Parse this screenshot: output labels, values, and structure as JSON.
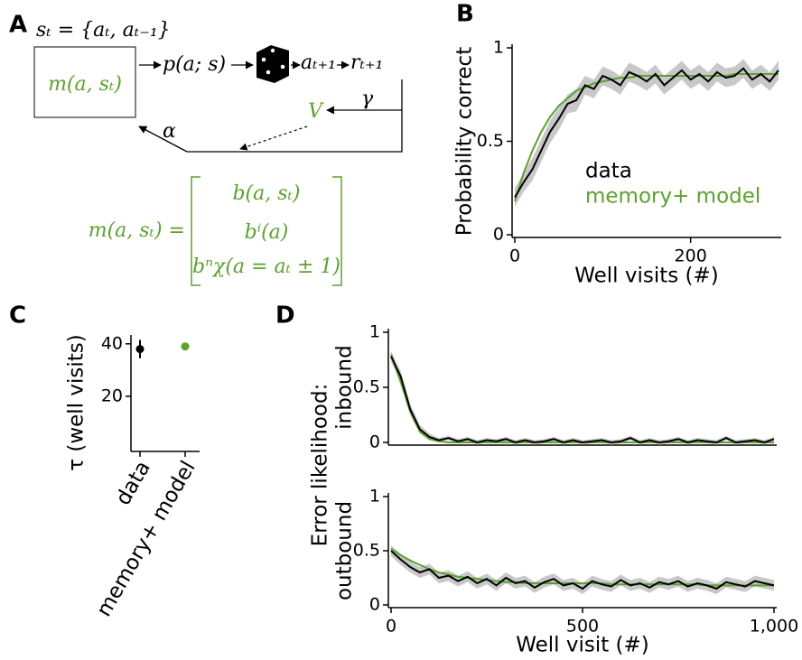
{
  "diagram": {
    "panel_label": "A",
    "state": "sₜ = {aₜ, aₜ₋₁}",
    "memory": "m(a, sₜ)",
    "policy": "p(a; s)",
    "action": "aₜ₊₁",
    "reward": "rₜ₊₁",
    "gamma": "γ",
    "value": "V",
    "alpha": "α",
    "equation_lhs": "m(a, sₜ) =",
    "matrix": [
      "b(a, sₜ)",
      "bⁱ(a)",
      "bⁿχ(a = aₜ ± 1)"
    ]
  },
  "chart_data": [
    {
      "type": "line",
      "panel_label": "B",
      "xlabel": "Well visits (#)",
      "ylabel": "Probability correct",
      "x": [
        0,
        10,
        20,
        30,
        40,
        50,
        60,
        70,
        80,
        90,
        100,
        110,
        120,
        130,
        140,
        150,
        160,
        170,
        180,
        190,
        200,
        210,
        220,
        230,
        240,
        250,
        260,
        270,
        280,
        290,
        300
      ],
      "xlim": [
        0,
        300
      ],
      "xticks": [
        0,
        200
      ],
      "ylim": [
        0,
        1
      ],
      "yticks": [
        0,
        0.5,
        1
      ],
      "legend": "right",
      "series": [
        {
          "name": "data",
          "color": "#000000",
          "values": [
            0.2,
            0.28,
            0.35,
            0.45,
            0.55,
            0.62,
            0.7,
            0.72,
            0.8,
            0.78,
            0.85,
            0.83,
            0.8,
            0.87,
            0.85,
            0.82,
            0.86,
            0.8,
            0.84,
            0.88,
            0.83,
            0.86,
            0.82,
            0.87,
            0.84,
            0.85,
            0.89,
            0.83,
            0.86,
            0.82,
            0.88
          ],
          "errors": [
            0.05,
            0.05,
            0.06,
            0.06,
            0.06,
            0.06,
            0.05,
            0.06,
            0.05,
            0.05,
            0.05,
            0.05,
            0.05,
            0.05,
            0.05,
            0.05,
            0.05,
            0.05,
            0.05,
            0.05,
            0.05,
            0.05,
            0.05,
            0.05,
            0.05,
            0.05,
            0.05,
            0.05,
            0.05,
            0.05,
            0.05
          ]
        },
        {
          "name": "memory+ model",
          "color": "#5da12f",
          "values": [
            0.18,
            0.33,
            0.45,
            0.55,
            0.63,
            0.69,
            0.73,
            0.77,
            0.79,
            0.81,
            0.82,
            0.83,
            0.84,
            0.84,
            0.85,
            0.85,
            0.85,
            0.85,
            0.85,
            0.85,
            0.85,
            0.85,
            0.85,
            0.85,
            0.85,
            0.86,
            0.86,
            0.86,
            0.86,
            0.86,
            0.86
          ]
        }
      ]
    },
    {
      "type": "point",
      "panel_label": "C",
      "ylabel": "τ (well visits)",
      "categories": [
        "data",
        "memory+ model"
      ],
      "values": [
        38,
        39
      ],
      "errors": [
        3.5,
        null
      ],
      "colors": [
        "#000000",
        "#5da12f"
      ],
      "ylim": [
        0,
        42
      ],
      "yticks": [
        20,
        40
      ]
    },
    {
      "type": "line",
      "panel_label": "D",
      "ylabel": "Error likelihood:",
      "ylabel2": "inbound",
      "x": [
        0,
        25,
        50,
        75,
        100,
        125,
        150,
        175,
        200,
        225,
        250,
        275,
        300,
        325,
        350,
        375,
        400,
        425,
        450,
        475,
        500,
        525,
        550,
        575,
        600,
        625,
        650,
        675,
        700,
        725,
        750,
        775,
        800,
        825,
        850,
        875,
        900,
        925,
        950,
        975,
        1000
      ],
      "xlim": [
        0,
        1000
      ],
      "xticks": [],
      "ylim": [
        0,
        1
      ],
      "yticks": [
        0,
        0.5,
        1
      ],
      "series": [
        {
          "name": "data",
          "color": "#000000",
          "values": [
            0.78,
            0.6,
            0.3,
            0.12,
            0.05,
            0.02,
            0.04,
            0.01,
            0.03,
            0.0,
            0.02,
            0.01,
            0.03,
            0.0,
            0.02,
            0.0,
            0.01,
            0.03,
            0.0,
            0.02,
            0.0,
            0.01,
            0.02,
            0.0,
            0.01,
            0.04,
            0.0,
            0.02,
            0.0,
            0.01,
            0.03,
            0.0,
            0.02,
            0.01,
            0.0,
            0.04,
            0.0,
            0.01,
            0.02,
            0.0,
            0.03
          ],
          "errors": [
            0.05,
            0.05,
            0.05,
            0.04,
            0.03,
            0.02,
            0.02,
            0.02,
            0.02,
            0.02,
            0.02,
            0.02,
            0.02,
            0.02,
            0.02,
            0.02,
            0.02,
            0.02,
            0.02,
            0.02,
            0.02,
            0.02,
            0.02,
            0.02,
            0.02,
            0.02,
            0.02,
            0.02,
            0.02,
            0.02,
            0.02,
            0.02,
            0.02,
            0.02,
            0.02,
            0.02,
            0.02,
            0.02,
            0.02,
            0.02,
            0.02
          ]
        },
        {
          "name": "memory+ model",
          "color": "#5da12f",
          "values": [
            0.8,
            0.55,
            0.28,
            0.1,
            0.03,
            0.01,
            0,
            0,
            0,
            0,
            0,
            0,
            0,
            0,
            0,
            0,
            0,
            0,
            0,
            0,
            0,
            0,
            0,
            0,
            0,
            0,
            0,
            0,
            0,
            0,
            0,
            0,
            0,
            0,
            0,
            0,
            0,
            0,
            0,
            0,
            0
          ]
        }
      ]
    },
    {
      "type": "line",
      "xlabel": "Well visit (#)",
      "ylabel2": "outbound",
      "x": [
        0,
        25,
        50,
        75,
        100,
        125,
        150,
        175,
        200,
        225,
        250,
        275,
        300,
        325,
        350,
        375,
        400,
        425,
        450,
        475,
        500,
        525,
        550,
        575,
        600,
        625,
        650,
        675,
        700,
        725,
        750,
        775,
        800,
        825,
        850,
        875,
        900,
        925,
        950,
        975,
        1000
      ],
      "xlim": [
        0,
        1000
      ],
      "xticks": [
        0,
        500,
        {
          "value": 1000,
          "label": "1,000"
        }
      ],
      "ylim": [
        0,
        1
      ],
      "yticks": [
        0,
        0.5,
        1
      ],
      "series": [
        {
          "name": "data",
          "color": "#000000",
          "values": [
            0.5,
            0.42,
            0.35,
            0.3,
            0.33,
            0.25,
            0.27,
            0.22,
            0.26,
            0.2,
            0.24,
            0.18,
            0.25,
            0.2,
            0.22,
            0.16,
            0.21,
            0.24,
            0.18,
            0.2,
            0.15,
            0.22,
            0.19,
            0.17,
            0.23,
            0.18,
            0.2,
            0.16,
            0.21,
            0.19,
            0.22,
            0.17,
            0.2,
            0.18,
            0.15,
            0.21,
            0.19,
            0.17,
            0.22,
            0.2,
            0.18
          ],
          "errors": [
            0.05,
            0.05,
            0.05,
            0.05,
            0.05,
            0.05,
            0.05,
            0.05,
            0.05,
            0.05,
            0.05,
            0.05,
            0.05,
            0.05,
            0.05,
            0.05,
            0.05,
            0.05,
            0.05,
            0.05,
            0.05,
            0.05,
            0.05,
            0.05,
            0.05,
            0.05,
            0.05,
            0.05,
            0.05,
            0.05,
            0.05,
            0.05,
            0.05,
            0.05,
            0.05,
            0.05,
            0.05,
            0.05,
            0.05,
            0.05,
            0.05
          ]
        },
        {
          "name": "memory+ model",
          "color": "#5da12f",
          "values": [
            0.52,
            0.46,
            0.41,
            0.37,
            0.33,
            0.3,
            0.28,
            0.26,
            0.25,
            0.24,
            0.23,
            0.22,
            0.21,
            0.21,
            0.2,
            0.2,
            0.2,
            0.2,
            0.2,
            0.2,
            0.2,
            0.2,
            0.2,
            0.19,
            0.19,
            0.19,
            0.19,
            0.19,
            0.19,
            0.19,
            0.19,
            0.19,
            0.19,
            0.18,
            0.18,
            0.18,
            0.18,
            0.18,
            0.18,
            0.18,
            0.18
          ]
        }
      ]
    }
  ]
}
